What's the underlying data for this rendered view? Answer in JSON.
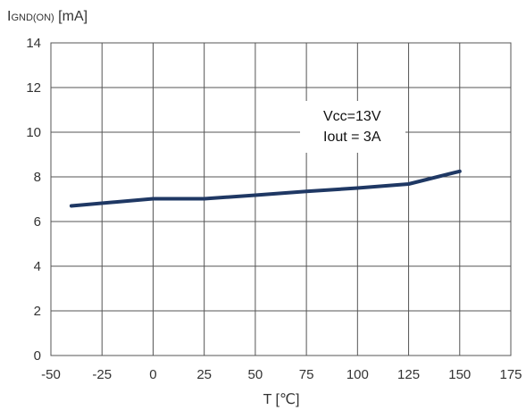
{
  "chart_data": {
    "type": "line",
    "title": "",
    "ylabel": {
      "main": "I",
      "sub": "GND(ON)",
      "unit": " [mA]"
    },
    "xlabel": "T [℃]",
    "xlim": [
      -50,
      175
    ],
    "ylim": [
      0,
      14
    ],
    "xticks": [
      "-50",
      "-25",
      "0",
      "25",
      "50",
      "75",
      "100",
      "125",
      "150",
      "175"
    ],
    "yticks": [
      "0",
      "2",
      "4",
      "6",
      "8",
      "10",
      "12",
      "14"
    ],
    "grid": true,
    "legend": "none",
    "series": [
      {
        "x": [
          -40,
          0,
          25,
          50,
          75,
          100,
          125,
          150
        ],
        "y": [
          6.7,
          7.02,
          7.02,
          7.18,
          7.35,
          7.5,
          7.68,
          8.25
        ],
        "color": "#1f3864"
      }
    ],
    "annotations": [
      "Vcc=13V",
      "Iout = 3A"
    ]
  }
}
